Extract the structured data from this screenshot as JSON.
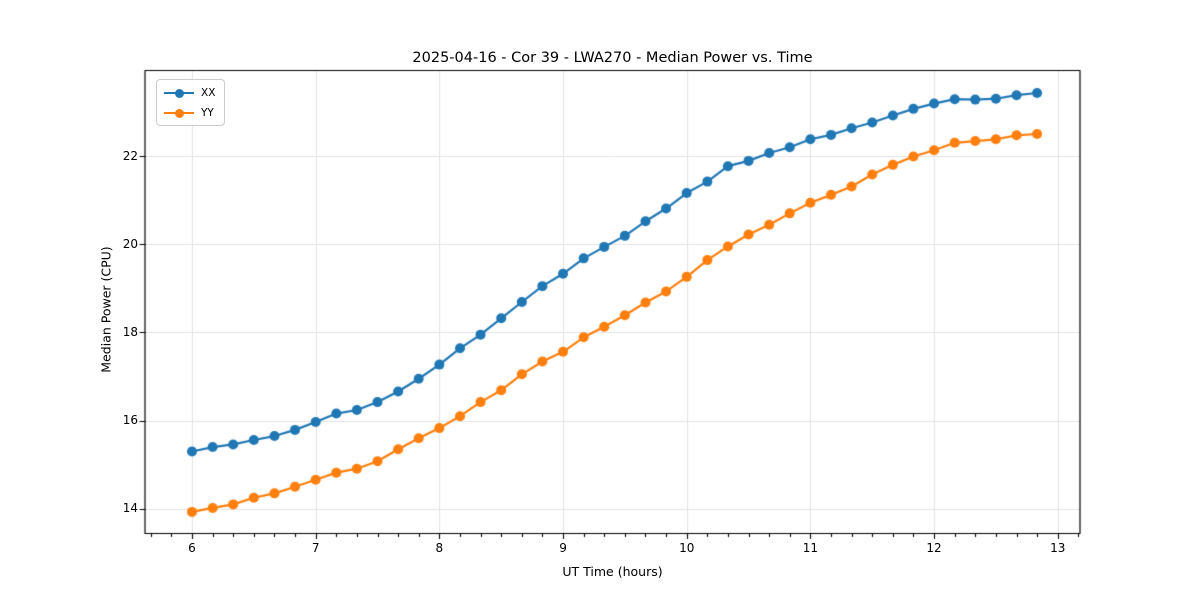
{
  "chart_data": {
    "type": "line",
    "title": "2025-04-16 - Cor 39 - LWA270 - Median Power vs. Time",
    "xlabel": "UT Time (hours)",
    "ylabel": "Median Power (CPU)",
    "x": [
      6.0,
      6.167,
      6.333,
      6.5,
      6.667,
      6.833,
      7.0,
      7.167,
      7.333,
      7.5,
      7.667,
      7.833,
      8.0,
      8.167,
      8.333,
      8.5,
      8.667,
      8.833,
      9.0,
      9.167,
      9.333,
      9.5,
      9.667,
      9.833,
      10.0,
      10.167,
      10.333,
      10.5,
      10.667,
      10.833,
      11.0,
      11.167,
      11.333,
      11.5,
      11.667,
      11.833,
      12.0,
      12.167,
      12.333,
      12.5,
      12.667,
      12.833
    ],
    "series": [
      {
        "name": "XX",
        "color": "#1f77b4",
        "marker": "circle",
        "values": [
          15.3,
          15.4,
          15.46,
          15.56,
          15.65,
          15.79,
          15.97,
          16.16,
          16.24,
          16.42,
          16.66,
          16.95,
          17.27,
          17.64,
          17.95,
          18.32,
          18.69,
          19.05,
          19.33,
          19.68,
          19.94,
          20.19,
          20.52,
          20.81,
          21.16,
          21.42,
          21.77,
          21.89,
          22.07,
          22.2,
          22.38,
          22.48,
          22.63,
          22.76,
          22.92,
          23.07,
          23.19,
          23.29,
          23.28,
          23.3,
          23.38,
          23.43
        ]
      },
      {
        "name": "YY",
        "color": "#ff7f0e",
        "marker": "circle",
        "values": [
          13.93,
          14.02,
          14.1,
          14.25,
          14.35,
          14.5,
          14.66,
          14.82,
          14.91,
          15.08,
          15.35,
          15.6,
          15.83,
          16.1,
          16.42,
          16.69,
          17.05,
          17.34,
          17.56,
          17.89,
          18.13,
          18.39,
          18.68,
          18.93,
          19.26,
          19.64,
          19.95,
          20.22,
          20.44,
          20.7,
          20.94,
          21.12,
          21.31,
          21.58,
          21.8,
          21.99,
          22.13,
          22.3,
          22.34,
          22.38,
          22.47,
          22.5
        ]
      }
    ],
    "xticks": [
      6,
      7,
      8,
      9,
      10,
      11,
      12,
      13
    ],
    "yticks": [
      14,
      16,
      18,
      20,
      22
    ],
    "xlim": [
      5.62,
      13.18
    ],
    "ylim": [
      13.44,
      23.94
    ],
    "grid": true,
    "grid_color": "#e3e3e3",
    "minor_tick_interval_x": 0.16667,
    "legend": {
      "position": "upper left",
      "entries": [
        "XX",
        "YY"
      ]
    }
  }
}
